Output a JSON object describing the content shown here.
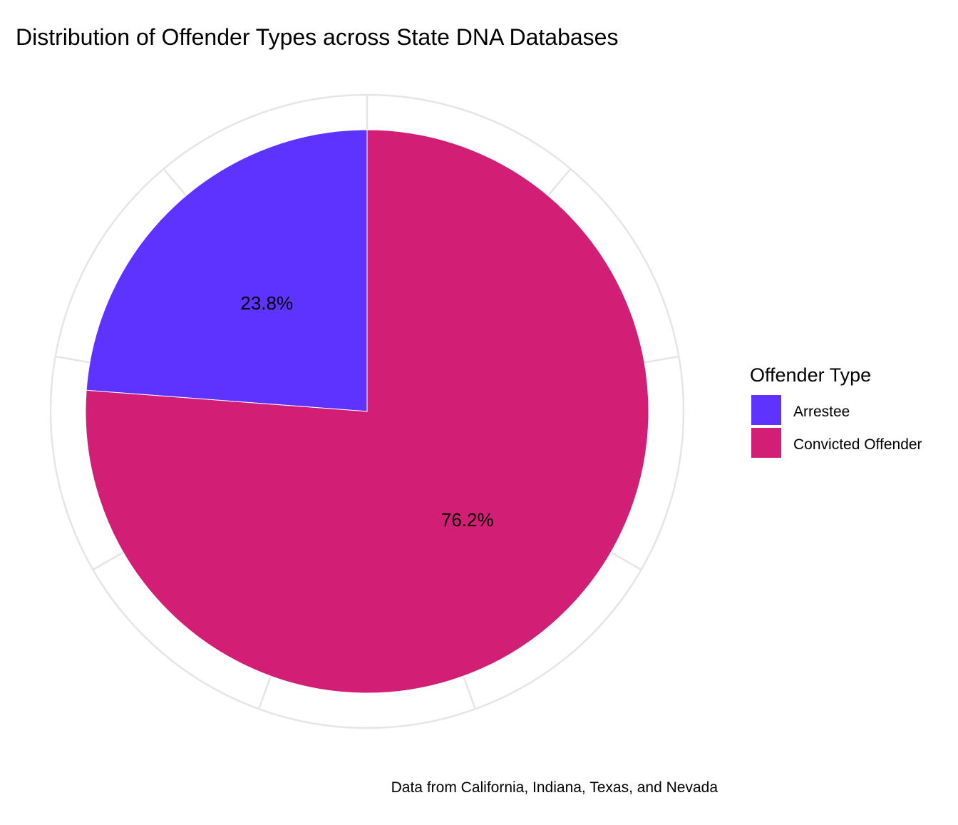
{
  "chart_data": {
    "type": "pie",
    "title": "Distribution of Offender Types across State DNA Databases",
    "caption": "Data from California, Indiana, Texas, and Nevada",
    "start_angle_deg": 0,
    "direction": "counterclockwise",
    "slices": [
      {
        "label": "Arrestee",
        "value": 23.8,
        "display": "23.8%",
        "color": "#5E33FF"
      },
      {
        "label": "Convicted Offender",
        "value": 76.2,
        "display": "76.2%",
        "color": "#D21F75"
      }
    ],
    "legend": {
      "title": "Offender Type",
      "position": "right",
      "items": [
        {
          "label": "Arrestee",
          "color": "#5E33FF"
        },
        {
          "label": "Convicted Offender",
          "color": "#D21F75"
        }
      ]
    },
    "grid": true,
    "grid_color": "#E5E5E5"
  }
}
